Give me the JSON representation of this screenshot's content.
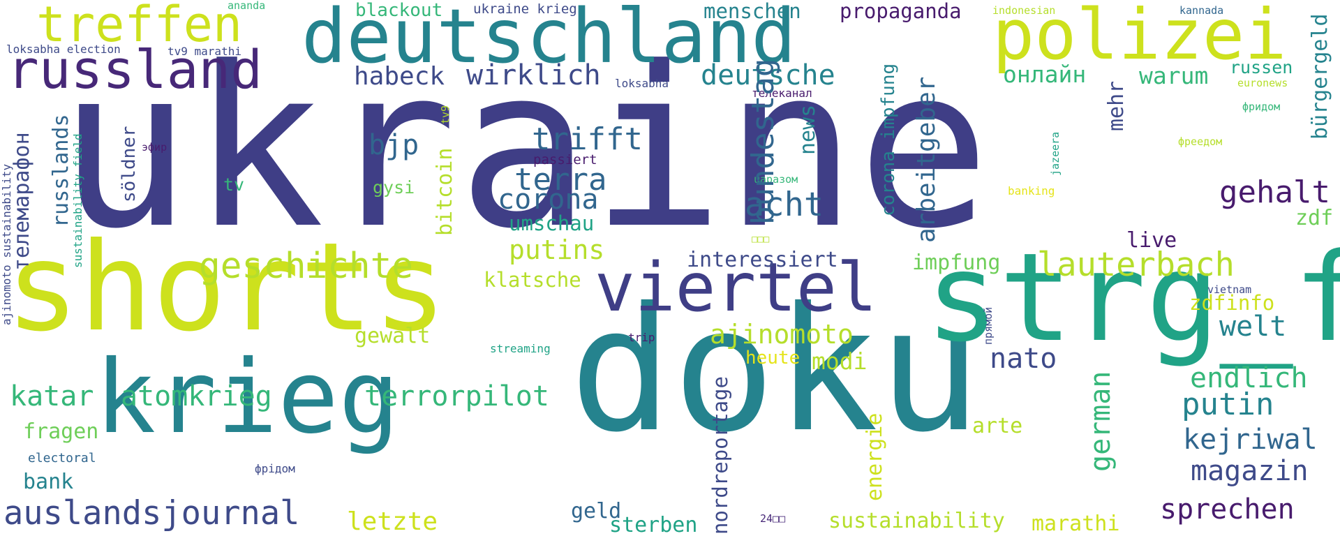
{
  "palette": {
    "navy": "#3f3e86",
    "indigo": "#472878",
    "dark_purple": "#481b6d",
    "slate_blue": "#3e4a89",
    "teal_blue": "#31668e",
    "teal": "#25838e",
    "sea_green": "#20a386",
    "green": "#35b779",
    "light_green": "#6ece58",
    "lime": "#b5de2b",
    "chartreuse": "#cde11d",
    "yellow": "#e5e419"
  },
  "words": {
    "ukraine": "ukraine",
    "shorts": "shorts",
    "doku": "doku",
    "krieg": "krieg",
    "deutschland": "deutschland",
    "strg_f": "strg_f",
    "polizei": "polizei",
    "russland": "russland",
    "treffen": "treffen",
    "viertel": "viertel",
    "auslandsjournal": "auslandsjournal",
    "geschichte": "geschichte",
    "lauterbach": "lauterbach",
    "atomkrieg": "atomkrieg",
    "terrorpilot": "terrorpilot",
    "katar": "katar",
    "acht": "acht",
    "wirklich": "wirklich",
    "habeck": "habeck",
    "deutsche": "deutsche",
    "trifft": "trifft",
    "terra": "terra",
    "corona": "corona",
    "putins": "putins",
    "ajinomoto": "ajinomoto",
    "putin": "putin",
    "kejriwal": "kejriwal",
    "magazin": "magazin",
    "sprechen": "sprechen",
    "endlich": "endlich",
    "welt": "welt",
    "nato": "nato",
    "gehalt": "gehalt",
    "warum": "warum",
    "onlayn": "онлайн",
    "propaganda": "propaganda",
    "menschen": "menschen",
    "blackout": "blackout",
    "ukraine_krieg": "ukraine krieg",
    "bjp": "bjp",
    "letzte": "letzte",
    "fragen": "fragen",
    "bank": "bank",
    "geld": "geld",
    "sterben": "sterben",
    "sustainability": "sustainability",
    "marathi": "marathi",
    "interessiert": "interessiert",
    "impfung": "impfung",
    "gewalt": "gewalt",
    "modi": "modi",
    "zdfinfo": "zdfinfo",
    "klatsche": "klatsche",
    "umschau": "umschau",
    "heute": "heute",
    "live": "live",
    "zdf": "zdf",
    "arte": "arte",
    "russen": "russen",
    "gysi": "gysi",
    "tv": "tv",
    "electoral": "electoral",
    "loksabha_election": "loksabha election",
    "tv9_marathi": "tv9 marathi",
    "ananda": "ananda",
    "loksabha": "loksabha",
    "indonesian": "indonesian",
    "kannada": "kannada",
    "euronews": "euronews",
    "fridom_ru": "фридом",
    "freedom_ru": "фрeeдом",
    "banking": "banking",
    "streaming": "streaming",
    "trip": "trip",
    "vietnam": "vietnam",
    "fridom_uk": "фрідом",
    "passiert": "passiert",
    "efir": "эфир",
    "telekanal": "телеканал",
    "uarazom": "uаразом",
    "glyphs_1": "□□□",
    "glyphs_24": "24□□",
    "buergergeld": "bürgergeld",
    "russlands": "russlands",
    "sustainability_field": "sustainability field",
    "ajinomoto_sustainability": "ajinomoto sustainability",
    "telemarafon": "телемарафон",
    "soeldner": "söldner",
    "bitcoin": "bitcoin",
    "tv9": "tv9",
    "bundestag": "bundestag",
    "news": "news",
    "corona_impfung": "corona impfung",
    "arbeitgeber": "arbeitgeber",
    "mehr": "mehr",
    "jazeera": "jazeera",
    "pryamoy": "прямой",
    "german": "german",
    "energie": "energie",
    "nordreportage": "nordreportage"
  }
}
